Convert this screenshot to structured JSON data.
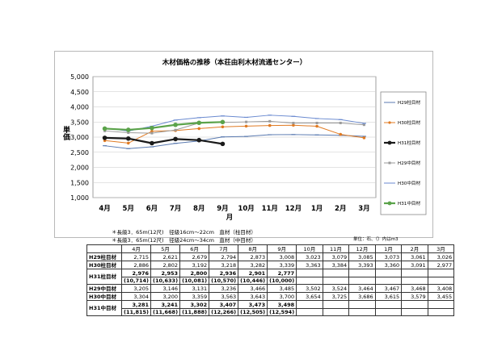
{
  "chart_data": {
    "type": "line",
    "title": "木材価格の推移（本荘由利木材流通センター）",
    "ylabel": "単価",
    "xlabel": "月",
    "categories": [
      "4月",
      "5月",
      "6月",
      "7月",
      "8月",
      "9月",
      "10月",
      "11月",
      "12月",
      "1月",
      "2月",
      "3月"
    ],
    "ylim": [
      1000,
      5000
    ],
    "yticks": [
      "1,000",
      "1,500",
      "2,000",
      "2,500",
      "3,000",
      "3,500",
      "4,000",
      "4,500",
      "5,000"
    ],
    "grid": true,
    "legend_position": "right",
    "series": [
      {
        "name": "H29柱目材",
        "color": "#5a7ab0",
        "width": 1,
        "marker": "dash",
        "values": [
          2715,
          2621,
          2679,
          2794,
          2873,
          3008,
          3023,
          3079,
          3085,
          3073,
          3061,
          3026
        ]
      },
      {
        "name": "H30柱目材",
        "color": "#e07a22",
        "width": 1,
        "marker": "dot",
        "values": [
          2886,
          2802,
          3192,
          3218,
          3282,
          3339,
          3363,
          3384,
          3393,
          3360,
          3091,
          2977
        ]
      },
      {
        "name": "H31柱目材",
        "color": "#1a1a1a",
        "width": 2.2,
        "marker": "dot",
        "values": [
          2976,
          2953,
          2800,
          2936,
          2901,
          2777,
          null,
          null,
          null,
          null,
          null,
          null
        ]
      },
      {
        "name": "H29中目材",
        "color": "#9a9a9a",
        "width": 1,
        "marker": "square",
        "values": [
          3205,
          3146,
          3131,
          3236,
          3466,
          3485,
          3502,
          3524,
          3464,
          3467,
          3468,
          3408
        ]
      },
      {
        "name": "H30中目材",
        "color": "#6a8ad0",
        "width": 1,
        "marker": "dash",
        "values": [
          3304,
          3200,
          3359,
          3563,
          3643,
          3700,
          3654,
          3725,
          3686,
          3615,
          3579,
          3455
        ]
      },
      {
        "name": "H31中目材",
        "color": "#5ba34a",
        "width": 2.2,
        "marker": "dot",
        "values": [
          3281,
          3241,
          3302,
          3407,
          3473,
          3498,
          null,
          null,
          null,
          null,
          null,
          null
        ]
      }
    ]
  },
  "notes": {
    "line1": "＊長級3．65m(12尺)　径級16cm～22cm　直材（柱目材）",
    "line2": "＊長級3．65m(12尺)　径級24cm～34cm　直材（中目材）",
    "unit": "単位：石、（）内はm3"
  },
  "table": {
    "headers": [
      "4月",
      "5月",
      "6月",
      "7月",
      "8月",
      "9月",
      "10月",
      "11月",
      "12月",
      "1月",
      "2月",
      "3月"
    ],
    "rows": [
      {
        "label": "H29柱目材",
        "cells": [
          "2,715",
          "2,621",
          "2,679",
          "2,794",
          "2,873",
          "3,008",
          "3,023",
          "3,079",
          "3,085",
          "3,073",
          "3,061",
          "3,026"
        ]
      },
      {
        "label": "H30柱目材",
        "cells": [
          "2,886",
          "2,802",
          "3,192",
          "3,218",
          "3,282",
          "3,339",
          "3,363",
          "3,384",
          "3,393",
          "3,360",
          "3,091",
          "2,977"
        ]
      },
      {
        "label": "H31柱目材",
        "cells": [
          "2,976",
          "2,953",
          "2,800",
          "2,936",
          "2,901",
          "2,777",
          "",
          "",
          "",
          "",
          "",
          ""
        ],
        "sub": [
          "(10,714)",
          "(10,633)",
          "(10,081)",
          "(10,570)",
          "(10,446)",
          "(10,000)",
          "",
          "",
          "",
          "",
          "",
          ""
        ]
      },
      {
        "label": "H29中目材",
        "cells": [
          "3,205",
          "3,146",
          "3,131",
          "3,236",
          "3,466",
          "3,485",
          "3,502",
          "3,524",
          "3,464",
          "3,467",
          "3,468",
          "3,408"
        ]
      },
      {
        "label": "H30中目材",
        "cells": [
          "3,304",
          "3,200",
          "3,359",
          "3,563",
          "3,643",
          "3,700",
          "3,654",
          "3,725",
          "3,686",
          "3,615",
          "3,579",
          "3,455"
        ]
      },
      {
        "label": "H31中目材",
        "cells": [
          "3,281",
          "3,241",
          "3,302",
          "3,407",
          "3,473",
          "3,498",
          "",
          "",
          "",
          "",
          "",
          ""
        ],
        "sub": [
          "(11,815)",
          "(11,668)",
          "(11,888)",
          "(12,266)",
          "(12,505)",
          "(12,594)",
          "",
          "",
          "",
          "",
          "",
          ""
        ]
      }
    ]
  }
}
